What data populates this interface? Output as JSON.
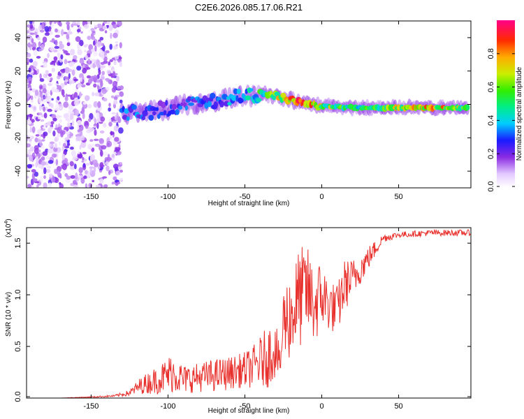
{
  "title": "C2E6.2026.085.17.06.R21",
  "chart_data": [
    {
      "type": "heatmap",
      "xlabel": "Height of straight line (km)",
      "ylabel": "Frequency (Hz)",
      "xlim": [
        -192,
        97
      ],
      "ylim": [
        -50,
        50
      ],
      "xticks": [
        -150,
        -100,
        -50,
        0,
        50
      ],
      "xtick_labels": [
        "-150",
        "-100",
        "-50",
        "0",
        "50"
      ],
      "yticks": [
        -40,
        -20,
        0,
        20,
        40
      ],
      "ytick_labels": [
        "-40",
        "-20",
        "0",
        "20",
        "40"
      ],
      "colorbar": {
        "label": "Normalized spectral amplitude",
        "range": [
          0,
          1
        ],
        "ticks": [
          0.0,
          0.2,
          0.4,
          0.6,
          0.8
        ],
        "tick_labels": [
          "0.0",
          "0.2",
          "0.4",
          "0.6",
          "0.8"
        ]
      },
      "ridge": {
        "x": [
          -130,
          -110,
          -90,
          -70,
          -50,
          -38,
          -25,
          -10,
          0,
          25,
          50,
          75,
          95
        ],
        "freq": [
          -5,
          -4,
          -1,
          2,
          5,
          7,
          4,
          0,
          -1,
          -2,
          -2,
          -2,
          -2
        ],
        "amplitude": [
          0.35,
          0.3,
          0.3,
          0.35,
          0.4,
          0.6,
          0.9,
          0.9,
          0.7,
          0.5,
          0.75,
          0.8,
          0.6
        ]
      },
      "noise_region": {
        "x_from": -192,
        "x_to": -130,
        "freq_from": -50,
        "freq_to": 50,
        "amplitude": 0.1
      }
    },
    {
      "type": "line",
      "xlabel": "Height of straight line (km)",
      "ylabel": "SNR (10 * v/v)",
      "multiplier_label": "(x10",
      "multiplier_exp": "4",
      "multiplier_close": ")",
      "xlim": [
        -192,
        97
      ],
      "ylim": [
        0,
        1.65
      ],
      "xticks": [
        -150,
        -100,
        -50,
        0,
        50
      ],
      "xtick_labels": [
        "-150",
        "-100",
        "-50",
        "0",
        "50"
      ],
      "yticks": [
        0.0,
        0.5,
        1.0,
        1.5
      ],
      "ytick_labels": [
        "0.0",
        "0.5",
        "1.0",
        "1.5"
      ],
      "series": [
        {
          "name": "SNR",
          "color": "#e8302c",
          "x": [
            -192,
            -170,
            -150,
            -135,
            -125,
            -118,
            -110,
            -103,
            -97,
            -90,
            -80,
            -70,
            -60,
            -55,
            -50,
            -45,
            -40,
            -35,
            -30,
            -27,
            -25,
            -20,
            -15,
            -10,
            -5,
            0,
            5,
            10,
            15,
            20,
            25,
            30,
            35,
            40,
            50,
            60,
            70,
            80,
            90,
            97
          ],
          "y": [
            0.0,
            0.0,
            0.01,
            0.02,
            0.05,
            0.12,
            0.16,
            0.2,
            0.25,
            0.18,
            0.2,
            0.22,
            0.24,
            0.26,
            0.27,
            0.3,
            0.35,
            0.4,
            0.5,
            0.3,
            0.75,
            0.8,
            0.95,
            1.05,
            0.9,
            1.0,
            0.9,
            0.85,
            1.1,
            1.15,
            1.25,
            1.35,
            1.45,
            1.55,
            1.58,
            1.59,
            1.6,
            1.6,
            1.6,
            1.6
          ],
          "noise": [
            0.0,
            0.0,
            0.005,
            0.01,
            0.03,
            0.08,
            0.12,
            0.16,
            0.2,
            0.14,
            0.14,
            0.16,
            0.16,
            0.16,
            0.18,
            0.2,
            0.25,
            0.3,
            0.3,
            0.1,
            0.35,
            0.45,
            0.5,
            0.45,
            0.4,
            0.35,
            0.25,
            0.25,
            0.25,
            0.2,
            0.15,
            0.12,
            0.08,
            0.04,
            0.03,
            0.03,
            0.03,
            0.03,
            0.03,
            0.03
          ]
        }
      ]
    }
  ]
}
